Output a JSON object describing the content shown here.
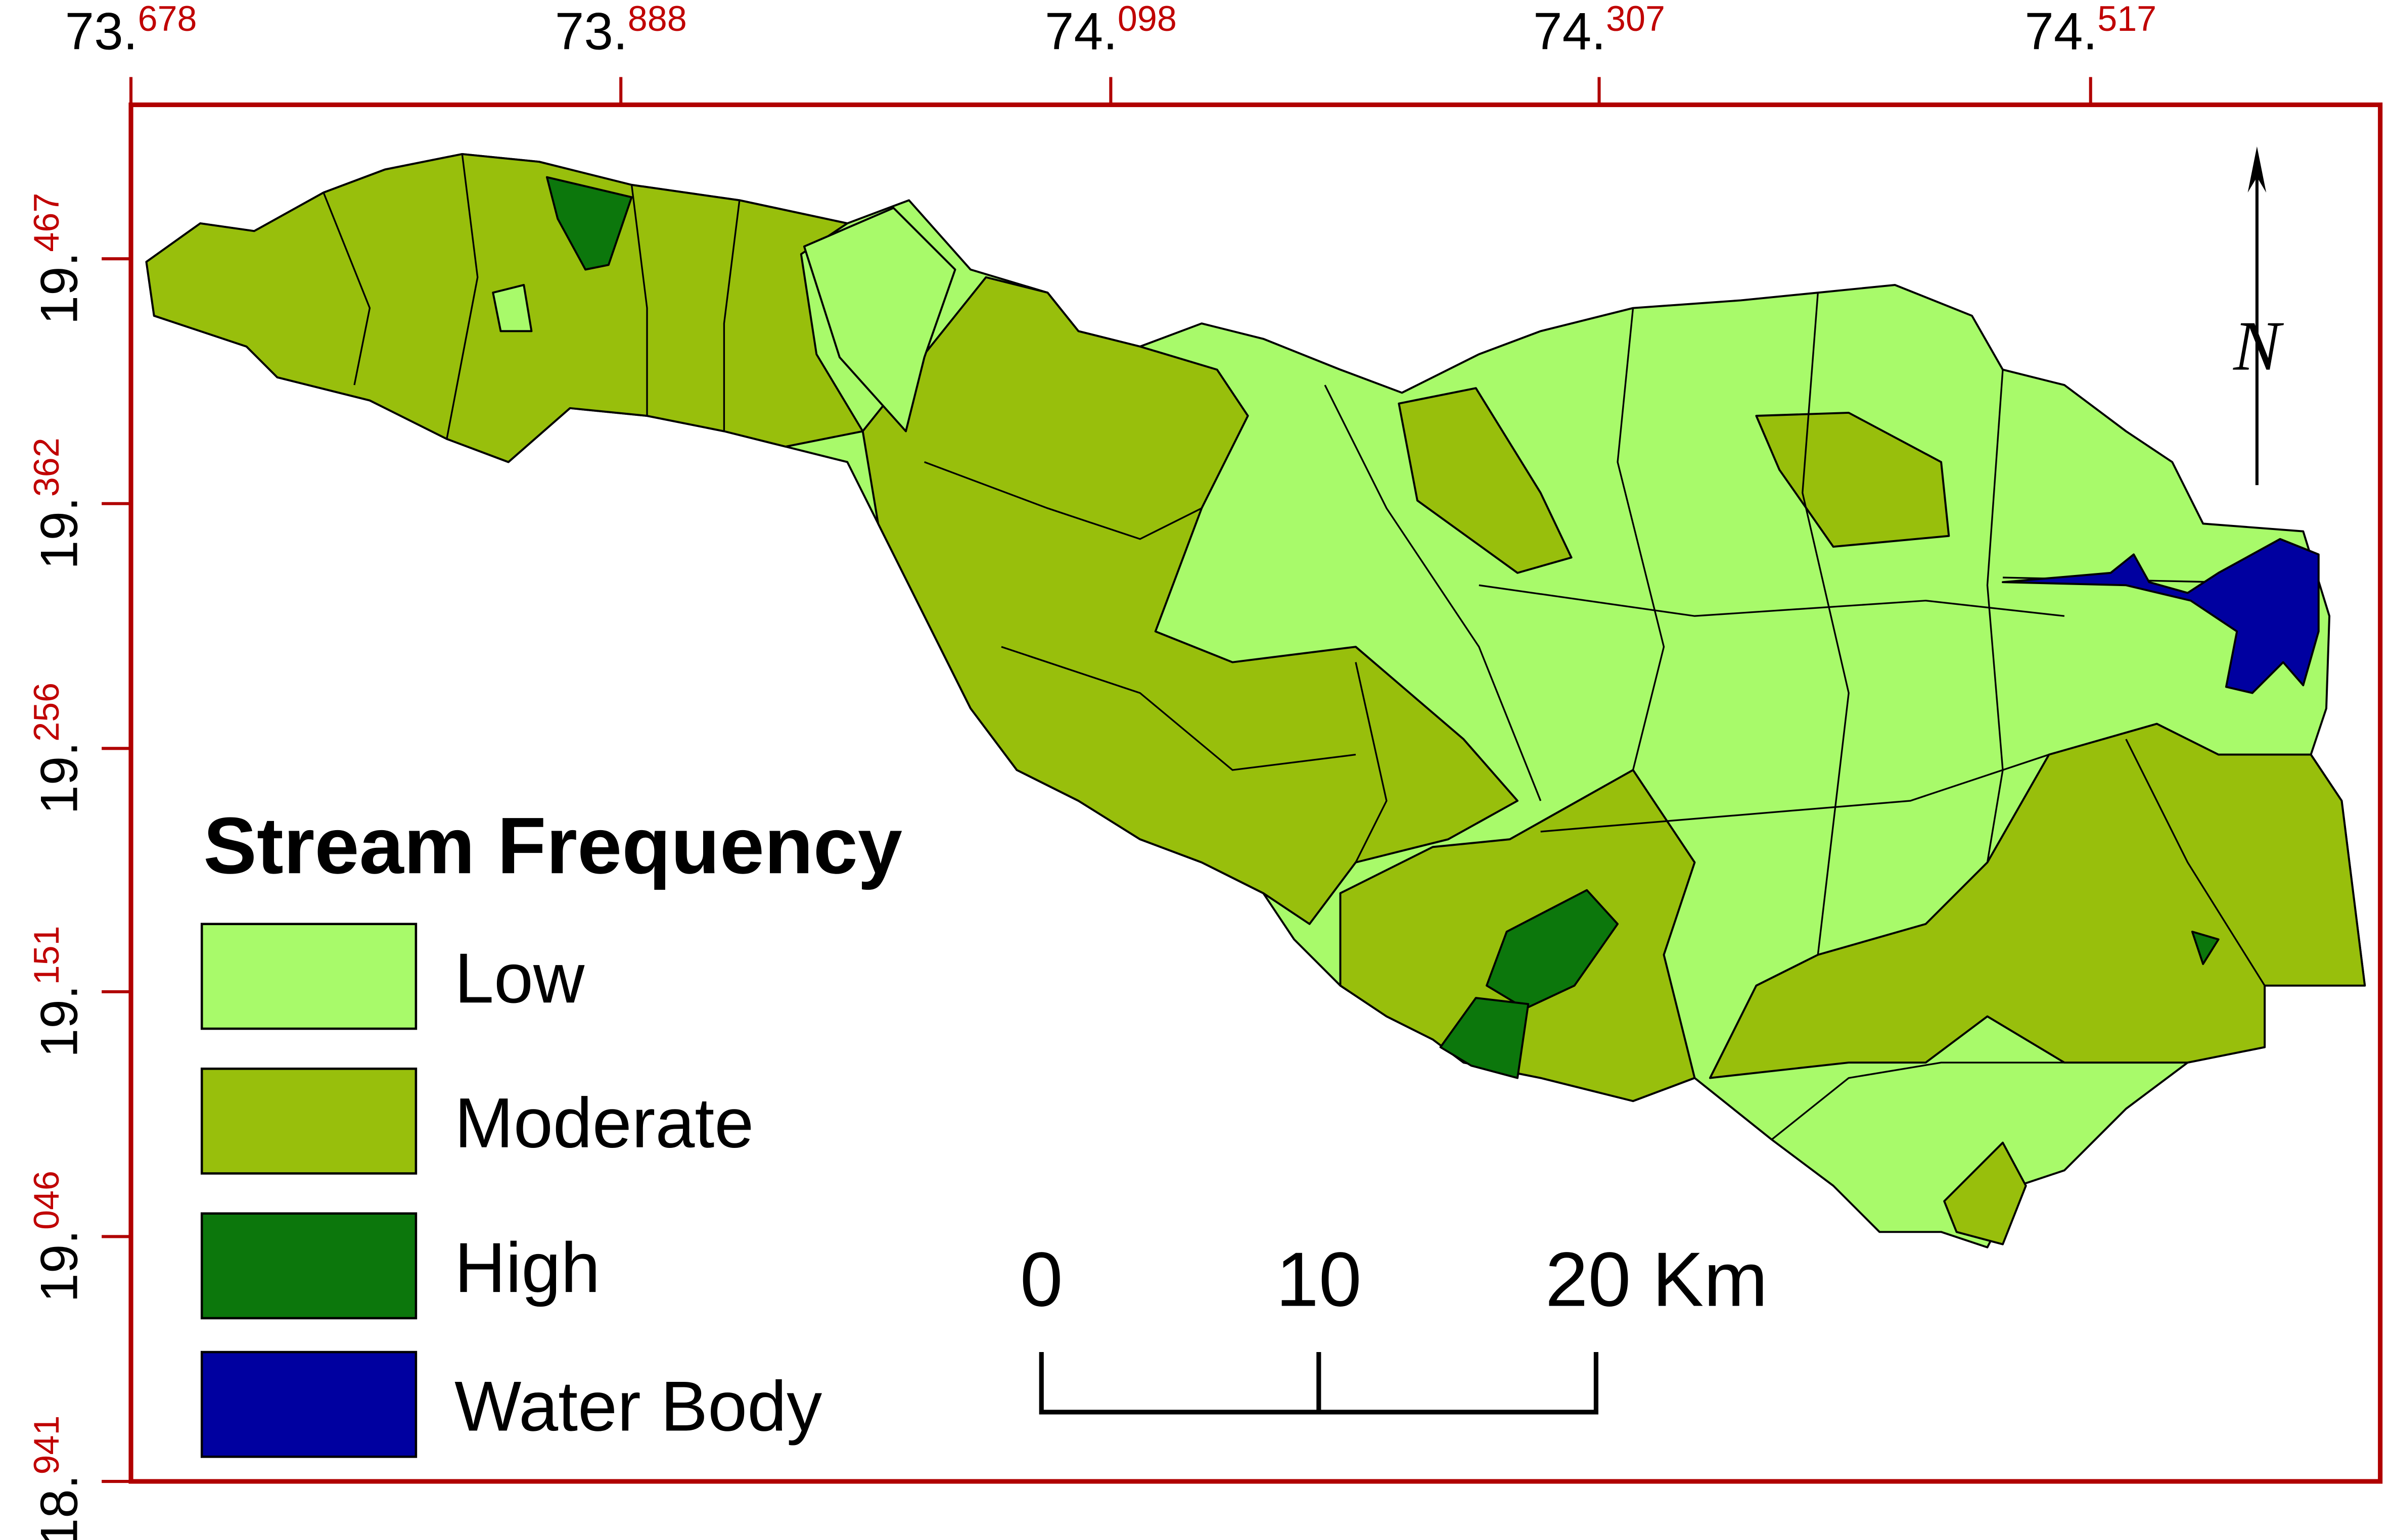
{
  "map": {
    "legend": {
      "title": "Stream Frequency",
      "items": [
        {
          "label": "Low",
          "color": "#a8fa6a"
        },
        {
          "label": "Moderate",
          "color": "#98bf0c"
        },
        {
          "label": "High",
          "color": "#0c770c"
        },
        {
          "label": "Water Body",
          "color": "#0000a0"
        }
      ]
    },
    "lon_ticks": [
      {
        "whole": "73.",
        "fraction": "678"
      },
      {
        "whole": "73.",
        "fraction": "888"
      },
      {
        "whole": "74.",
        "fraction": "098"
      },
      {
        "whole": "74.",
        "fraction": "307"
      },
      {
        "whole": "74.",
        "fraction": "517"
      }
    ],
    "lat_ticks": [
      {
        "whole": "19.",
        "fraction": "467"
      },
      {
        "whole": "19.",
        "fraction": "362"
      },
      {
        "whole": "19.",
        "fraction": "256"
      },
      {
        "whole": "19.",
        "fraction": "151"
      },
      {
        "whole": "19.",
        "fraction": "046"
      },
      {
        "whole": "18.",
        "fraction": "941"
      }
    ],
    "scale_bar": [
      "0",
      "10",
      "20 Km"
    ],
    "north": "N"
  }
}
